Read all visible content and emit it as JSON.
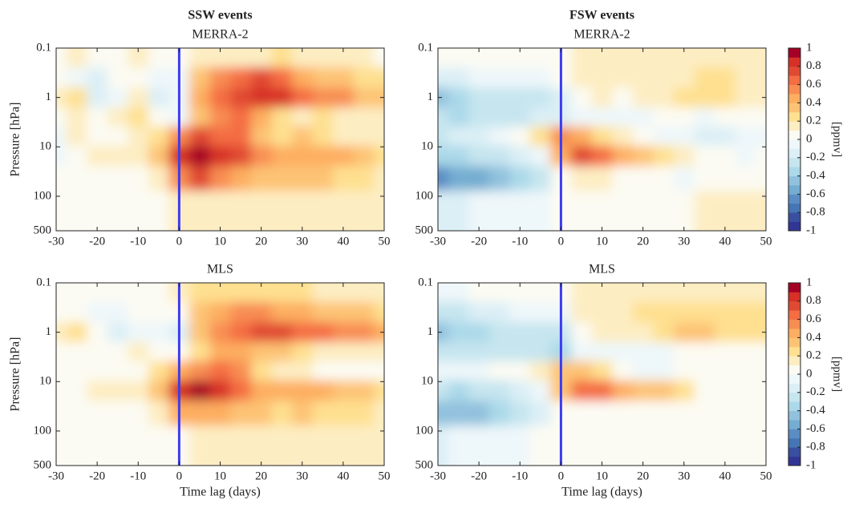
{
  "chart_data": [
    {
      "type": "heatmap",
      "title": "SSW events",
      "subtitle": "MERRA-2",
      "ylabel": "Pressure [hPa]",
      "xlim": [
        -30,
        50
      ],
      "xticks": [
        -30,
        -20,
        -10,
        0,
        10,
        20,
        30,
        40,
        50
      ],
      "ylim": [
        0.1,
        500
      ],
      "yticks": [
        0.1,
        1,
        10,
        100,
        500
      ],
      "log_y": true,
      "y_reversed": true,
      "vline": 0,
      "vline_color": "#3b3bf0",
      "x": [
        -30,
        -25,
        -20,
        -15,
        -10,
        -5,
        0,
        5,
        10,
        15,
        20,
        25,
        30,
        35,
        40,
        45,
        50
      ],
      "y": [
        0.15,
        0.4,
        1,
        2.5,
        6,
        15,
        40,
        150
      ],
      "z": [
        [
          0,
          0.1,
          0,
          0,
          0.1,
          0,
          0,
          0.1,
          0.1,
          0.1,
          0.1,
          0.2,
          0.1,
          0.1,
          0.1,
          0.1,
          0
        ],
        [
          0,
          -0.1,
          -0.2,
          0,
          0,
          -0.1,
          -0.1,
          0.3,
          0.5,
          0.6,
          0.7,
          0.6,
          0.4,
          0.3,
          0.3,
          0.2,
          0.2
        ],
        [
          0.1,
          0.2,
          -0.2,
          -0.1,
          0.1,
          -0.2,
          -0.1,
          0.4,
          0.6,
          0.7,
          0.8,
          0.8,
          0.6,
          0.5,
          0.5,
          0.3,
          0.3
        ],
        [
          0,
          0.1,
          0,
          0.1,
          0.2,
          0,
          -0.1,
          0.3,
          0.5,
          0.6,
          0.4,
          0.2,
          0.1,
          0.2,
          0.1,
          0.1,
          0.1
        ],
        [
          -0.1,
          0.1,
          0,
          0,
          0.1,
          0.2,
          0.5,
          0.7,
          0.6,
          0.6,
          0.3,
          0.2,
          0.3,
          0.2,
          0.1,
          0.1,
          0.1
        ],
        [
          -0.1,
          0,
          0.1,
          0.1,
          0.1,
          0.3,
          0.8,
          0.9,
          0.8,
          0.7,
          0.5,
          0.4,
          0.4,
          0.4,
          0.4,
          0.3,
          0.2
        ],
        [
          0,
          0,
          0,
          0,
          0,
          0.1,
          0.5,
          0.7,
          0.5,
          0.4,
          0.3,
          0.3,
          0.3,
          0.3,
          0.2,
          0.2,
          0.1
        ],
        [
          0,
          0,
          0,
          0,
          0,
          0,
          0.1,
          0.1,
          0.1,
          0.1,
          0.1,
          0.1,
          0.1,
          0.1,
          0.1,
          0.1,
          0.1
        ]
      ]
    },
    {
      "type": "heatmap",
      "title": "FSW events",
      "subtitle": "MERRA-2",
      "xlim": [
        -30,
        50
      ],
      "xticks": [
        -30,
        -20,
        -10,
        0,
        10,
        20,
        30,
        40,
        50
      ],
      "ylim": [
        0.1,
        500
      ],
      "yticks": [
        0.1,
        1,
        10,
        100,
        500
      ],
      "log_y": true,
      "y_reversed": true,
      "vline": 0,
      "vline_color": "#3b3bf0",
      "x": [
        -30,
        -25,
        -20,
        -15,
        -10,
        -5,
        0,
        5,
        10,
        15,
        20,
        25,
        30,
        35,
        40,
        45,
        50
      ],
      "y": [
        0.15,
        0.4,
        1,
        2.5,
        6,
        15,
        40,
        150
      ],
      "z": [
        [
          0,
          0,
          0,
          0,
          0,
          0,
          0,
          0.1,
          0.1,
          0.1,
          0.1,
          0.1,
          0.1,
          0.1,
          0.1,
          0.1,
          0.1
        ],
        [
          -0.2,
          -0.2,
          -0.1,
          -0.1,
          -0.1,
          -0.1,
          0,
          0.1,
          0.1,
          0.1,
          0.1,
          0.1,
          0.1,
          0.2,
          0.2,
          0.1,
          0.1
        ],
        [
          -0.5,
          -0.4,
          -0.3,
          -0.3,
          -0.3,
          -0.3,
          -0.2,
          0,
          0.1,
          0,
          0.1,
          0.1,
          0.2,
          0.2,
          0.2,
          0.1,
          0.1
        ],
        [
          -0.3,
          -0.4,
          -0.3,
          -0.3,
          -0.3,
          -0.2,
          -0.2,
          -0.1,
          -0.1,
          -0.1,
          -0.1,
          0,
          0,
          -0.1,
          0,
          0,
          0
        ],
        [
          -0.3,
          -0.2,
          -0.2,
          -0.1,
          0,
          0.2,
          0.5,
          0.4,
          0.2,
          0.1,
          0,
          -0.1,
          -0.1,
          -0.2,
          -0.2,
          -0.1,
          -0.1
        ],
        [
          -0.4,
          -0.4,
          -0.3,
          -0.3,
          -0.2,
          -0.1,
          0.4,
          0.7,
          0.6,
          0.4,
          0.3,
          0.2,
          0.1,
          0,
          0,
          -0.1,
          0
        ],
        [
          -0.7,
          -0.6,
          -0.6,
          -0.5,
          -0.4,
          -0.3,
          0,
          0.1,
          0.1,
          0,
          0,
          0,
          -0.1,
          0,
          0,
          0,
          0
        ],
        [
          -0.2,
          -0.2,
          -0.1,
          -0.1,
          -0.1,
          -0.1,
          0,
          0,
          0,
          0,
          0,
          0,
          0,
          0.1,
          0.1,
          0.1,
          0.1
        ]
      ],
      "colorbar": {
        "lim": [
          -1,
          1
        ],
        "ticks": [
          1,
          0.8,
          0.6,
          0.4,
          0.2,
          0,
          -0.2,
          -0.4,
          -0.6,
          -0.8,
          -1
        ],
        "label": "[ppmv]",
        "colors": [
          "#313695",
          "#3a4fa0",
          "#4575b4",
          "#5a8dc4",
          "#74add1",
          "#91c1dd",
          "#abd9e9",
          "#c6e5ef",
          "#dceff6",
          "#eef7fa",
          "#fcfbf3",
          "#fdedc2",
          "#fee090",
          "#fdc374",
          "#fdae61",
          "#f88d52",
          "#f46d43",
          "#e04a33",
          "#d73027",
          "#a50026"
        ]
      }
    },
    {
      "type": "heatmap",
      "subtitle": "MLS",
      "xlabel": "Time lag (days)",
      "ylabel": "Pressure [hPa]",
      "xlim": [
        -30,
        50
      ],
      "xticks": [
        -30,
        -20,
        -10,
        0,
        10,
        20,
        30,
        40,
        50
      ],
      "ylim": [
        0.1,
        500
      ],
      "yticks": [
        0.1,
        1,
        10,
        100,
        500
      ],
      "log_y": true,
      "y_reversed": true,
      "vline": 0,
      "vline_color": "#3b3bf0",
      "x": [
        -30,
        -25,
        -20,
        -15,
        -10,
        -5,
        0,
        5,
        10,
        15,
        20,
        25,
        30,
        35,
        40,
        45,
        50
      ],
      "y": [
        0.15,
        0.4,
        1,
        2.5,
        6,
        15,
        40,
        150
      ],
      "z": [
        [
          0,
          0,
          0,
          0,
          0,
          0,
          0.1,
          0.2,
          0.2,
          0.2,
          0.2,
          0.2,
          0.2,
          0.1,
          0.1,
          0.1,
          0.1
        ],
        [
          0,
          0,
          -0.1,
          -0.1,
          0,
          0,
          0,
          0.3,
          0.4,
          0.5,
          0.5,
          0.4,
          0.4,
          0.3,
          0.3,
          0.3,
          0.2
        ],
        [
          0.1,
          0.2,
          0,
          -0.2,
          -0.1,
          -0.1,
          -0.2,
          0.3,
          0.5,
          0.6,
          0.7,
          0.7,
          0.6,
          0.6,
          0.5,
          0.5,
          0.4
        ],
        [
          0,
          0,
          0,
          0,
          0.1,
          0,
          0,
          0.2,
          0.4,
          0.4,
          0.3,
          0.3,
          0.2,
          0.1,
          0.1,
          0.1,
          0.1
        ],
        [
          0,
          0,
          0,
          0,
          0,
          0.2,
          0.4,
          0.5,
          0.6,
          0.5,
          0.2,
          0.1,
          0.1,
          0,
          0,
          0,
          0
        ],
        [
          0,
          0,
          0.1,
          0.1,
          0.1,
          0.3,
          0.8,
          0.9,
          0.8,
          0.6,
          0.4,
          0.4,
          0.4,
          0.4,
          0.3,
          0.3,
          0.2
        ],
        [
          0,
          0,
          0,
          0,
          0,
          0.1,
          0.4,
          0.4,
          0.4,
          0.3,
          0.3,
          0.2,
          0.3,
          0.2,
          0.2,
          0.2,
          0.1
        ],
        [
          0,
          0,
          0,
          0,
          0,
          0,
          0,
          0.1,
          0.1,
          0.1,
          0.1,
          0.1,
          0.1,
          0.1,
          0.1,
          0.1,
          0.1
        ]
      ]
    },
    {
      "type": "heatmap",
      "subtitle": "MLS",
      "xlabel": "Time lag (days)",
      "xlim": [
        -30,
        50
      ],
      "xticks": [
        -30,
        -20,
        -10,
        0,
        10,
        20,
        30,
        40,
        50
      ],
      "ylim": [
        0.1,
        500
      ],
      "yticks": [
        0.1,
        1,
        10,
        100,
        500
      ],
      "log_y": true,
      "y_reversed": true,
      "vline": 0,
      "vline_color": "#3b3bf0",
      "x": [
        -30,
        -25,
        -20,
        -15,
        -10,
        -5,
        0,
        5,
        10,
        15,
        20,
        25,
        30,
        35,
        40,
        45,
        50
      ],
      "y": [
        0.15,
        0.4,
        1,
        2.5,
        6,
        15,
        40,
        150
      ],
      "z": [
        [
          -0.1,
          -0.1,
          0,
          0,
          0,
          0,
          0,
          0.1,
          0.1,
          0.1,
          0.1,
          0.1,
          0.1,
          0.1,
          0.1,
          0.1,
          0.1
        ],
        [
          -0.3,
          -0.3,
          -0.2,
          -0.2,
          -0.1,
          -0.1,
          -0.1,
          0.1,
          0.1,
          0.1,
          0.2,
          0.2,
          0.2,
          0.2,
          0.2,
          0.2,
          0.2
        ],
        [
          -0.5,
          -0.4,
          -0.4,
          -0.3,
          -0.3,
          -0.3,
          -0.3,
          0,
          0.1,
          0.1,
          0.1,
          0.2,
          0.3,
          0.3,
          0.2,
          0.2,
          0.2
        ],
        [
          -0.3,
          -0.3,
          -0.3,
          -0.3,
          -0.3,
          -0.3,
          -0.4,
          -0.1,
          -0.1,
          -0.1,
          -0.1,
          -0.1,
          0,
          0,
          0,
          0,
          0
        ],
        [
          -0.1,
          -0.1,
          -0.1,
          0,
          0,
          0.1,
          0.3,
          0.3,
          0.2,
          0,
          -0.1,
          -0.1,
          0,
          0,
          0,
          0,
          0
        ],
        [
          -0.3,
          -0.4,
          -0.3,
          -0.3,
          -0.2,
          -0.1,
          0.3,
          0.6,
          0.6,
          0.4,
          0.3,
          0.3,
          0.2,
          0,
          0,
          0,
          0
        ],
        [
          -0.5,
          -0.5,
          -0.5,
          -0.4,
          -0.3,
          -0.2,
          0,
          0,
          0,
          0,
          0,
          0,
          0,
          0,
          0,
          0,
          0
        ],
        [
          -0.2,
          -0.1,
          -0.1,
          -0.1,
          -0.1,
          0,
          0,
          0,
          0,
          0,
          0,
          0,
          0,
          0,
          0,
          0,
          0
        ]
      ],
      "colorbar": {
        "lim": [
          -1,
          1
        ],
        "ticks": [
          1,
          0.8,
          0.6,
          0.4,
          0.2,
          0,
          -0.2,
          -0.4,
          -0.6,
          -0.8,
          -1
        ],
        "label": "[ppmv]",
        "colors": [
          "#313695",
          "#3a4fa0",
          "#4575b4",
          "#5a8dc4",
          "#74add1",
          "#91c1dd",
          "#abd9e9",
          "#c6e5ef",
          "#dceff6",
          "#eef7fa",
          "#fcfbf3",
          "#fdedc2",
          "#fee090",
          "#fdc374",
          "#fdae61",
          "#f88d52",
          "#f46d43",
          "#e04a33",
          "#d73027",
          "#a50026"
        ]
      }
    }
  ]
}
